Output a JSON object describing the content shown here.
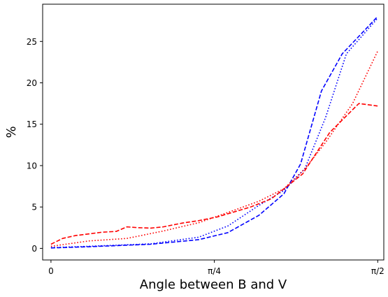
{
  "chart_data": {
    "type": "line",
    "title": "",
    "xlabel": "Angle between B and V",
    "ylabel": "%",
    "xlim": [
      -0.04,
      1.6
    ],
    "ylim": [
      -1.4,
      29.5
    ],
    "grid": false,
    "x_ticks": [
      {
        "value": 0,
        "label": "0"
      },
      {
        "value": 0.7854,
        "label": "π/4"
      },
      {
        "value": 1.5708,
        "label": "π/2"
      }
    ],
    "y_ticks": [
      0,
      5,
      10,
      15,
      20,
      25
    ],
    "series": [
      {
        "color": "#0000ff",
        "style": "dashed",
        "x": [
          0.0,
          0.183,
          0.48,
          0.71,
          0.85,
          1.0,
          1.12,
          1.2,
          1.3,
          1.4,
          1.57
        ],
        "y": [
          0.05,
          0.2,
          0.5,
          1.05,
          1.9,
          4.0,
          6.6,
          10.2,
          19.0,
          23.5,
          28.0
        ]
      },
      {
        "color": "#0000ff",
        "style": "dotted",
        "x": [
          0.0,
          0.183,
          0.48,
          0.71,
          0.85,
          1.0,
          1.12,
          1.22,
          1.32,
          1.42,
          1.57
        ],
        "y": [
          0.1,
          0.25,
          0.55,
          1.35,
          2.7,
          5.2,
          7.0,
          9.6,
          15.8,
          23.5,
          27.8
        ]
      },
      {
        "color": "#ff0000",
        "style": "dashed",
        "x": [
          0.0,
          0.056,
          0.118,
          0.183,
          0.244,
          0.314,
          0.365,
          0.419,
          0.48,
          0.54,
          0.63,
          0.71,
          0.8,
          0.88,
          0.96,
          1.06,
          1.21,
          1.34,
          1.48,
          1.57
        ],
        "y": [
          0.5,
          1.2,
          1.55,
          1.75,
          1.95,
          2.05,
          2.6,
          2.5,
          2.45,
          2.6,
          3.05,
          3.35,
          3.8,
          4.4,
          5.0,
          6.0,
          9.0,
          14.0,
          17.5,
          17.2
        ]
      },
      {
        "color": "#ff0000",
        "style": "dotted",
        "x": [
          0.0,
          0.183,
          0.365,
          0.54,
          0.71,
          0.88,
          1.0,
          1.12,
          1.22,
          1.32,
          1.45,
          1.57
        ],
        "y": [
          0.25,
          0.9,
          1.2,
          2.1,
          3.1,
          4.6,
          5.7,
          7.2,
          9.6,
          12.8,
          17.5,
          23.8
        ]
      }
    ]
  }
}
